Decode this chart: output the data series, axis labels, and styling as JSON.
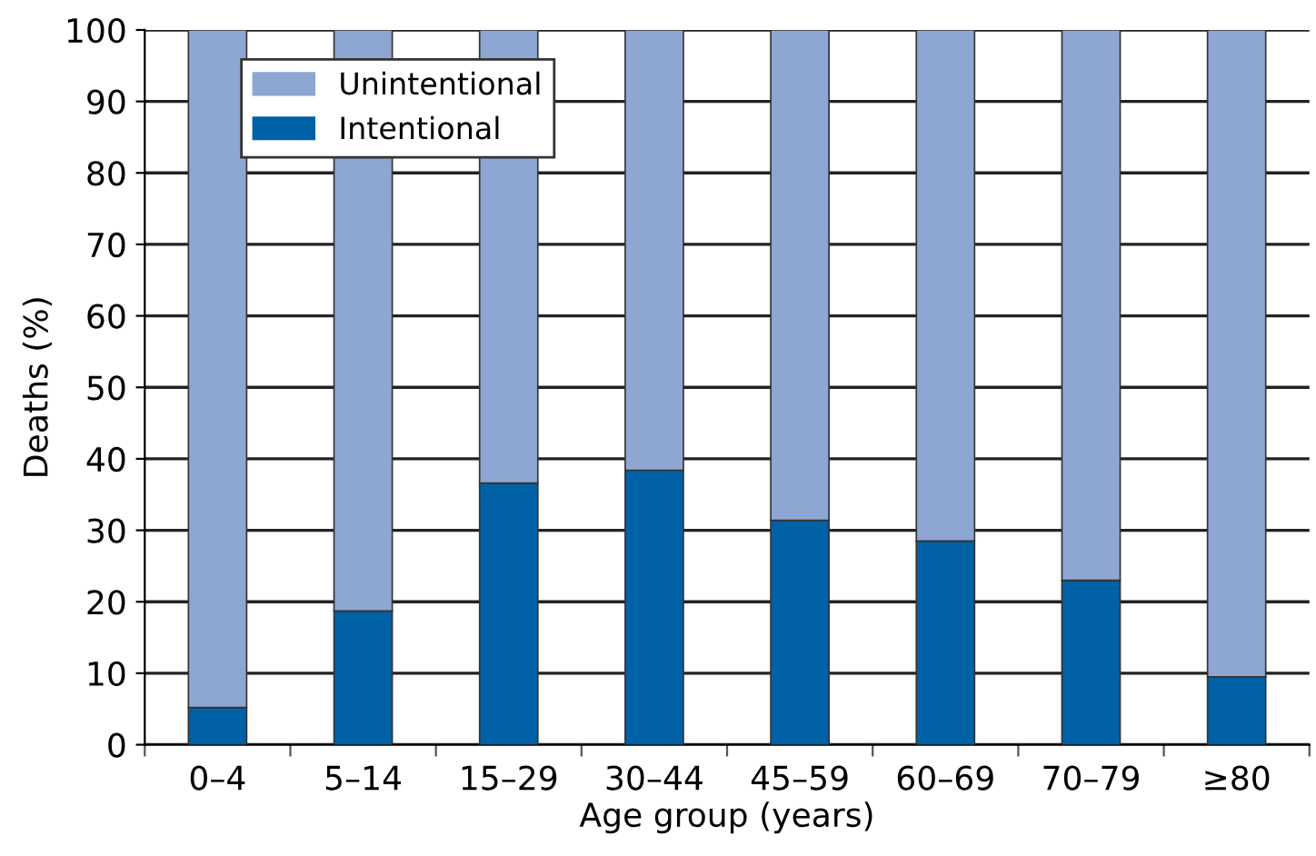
{
  "chart_data": {
    "type": "bar",
    "stacked": true,
    "xlabel": "Age group (years)",
    "ylabel": "Deaths (%)",
    "categories": [
      "0–4",
      "5–14",
      "15–29",
      "30–44",
      "45–59",
      "60–69",
      "70–79",
      "≥80"
    ],
    "series": [
      {
        "name": "Intentional",
        "color": "#0061a6",
        "values": [
          5.2,
          18.7,
          36.6,
          38.4,
          31.4,
          28.5,
          23,
          9.5
        ]
      },
      {
        "name": "Unintentional",
        "color": "#8ea6d2",
        "values": [
          94.8,
          81.3,
          63.4,
          61.6,
          68.6,
          71.5,
          77,
          90.5
        ]
      }
    ],
    "ylim": [
      0,
      100
    ],
    "yticks": [
      0,
      10,
      20,
      30,
      40,
      50,
      60,
      70,
      80,
      90,
      100
    ],
    "grid": "y",
    "legend": "top left"
  }
}
